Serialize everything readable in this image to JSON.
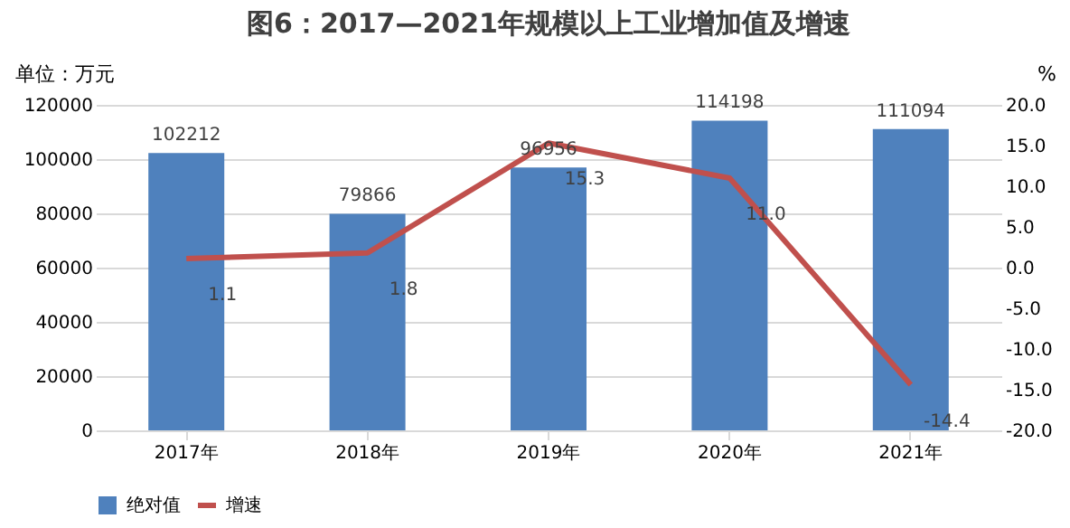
{
  "chart_data": {
    "type": "bar",
    "title": "图6：2017—2021年规模以上工业增加值及增速",
    "ylabel": "单位：万元",
    "y2label": "%",
    "categories": [
      "2017年",
      "2018年",
      "2019年",
      "2020年",
      "2021年"
    ],
    "series": [
      {
        "name": "绝对值",
        "color": "#4f81bd",
        "values": [
          102212,
          79866,
          96956,
          114198,
          111094
        ]
      },
      {
        "name": "增速",
        "type": "line",
        "axis": "y2",
        "color": "#c0504d",
        "values": [
          1.1,
          1.8,
          15.3,
          11.0,
          -14.4
        ],
        "value_labels": [
          "1.1",
          "1.8",
          "15.3",
          "11.0",
          "-14.4"
        ]
      }
    ],
    "ylim": [
      0,
      120000
    ],
    "yticks": [
      0,
      20000,
      40000,
      60000,
      80000,
      100000,
      120000
    ],
    "y2lim": [
      -20,
      20
    ],
    "y2ticks": [
      {
        "value": -20,
        "label": "-20.0"
      },
      {
        "value": -15,
        "label": "-15.0"
      },
      {
        "value": -10,
        "label": "-10.0"
      },
      {
        "value": -5,
        "label": "-5.0"
      },
      {
        "value": 0,
        "label": "0.0"
      },
      {
        "value": 5,
        "label": "5.0"
      },
      {
        "value": 10,
        "label": "10.0"
      },
      {
        "value": 15,
        "label": "15.0"
      },
      {
        "value": 20,
        "label": "20.0"
      }
    ],
    "grid": "y",
    "legend": "bottom",
    "data_labels": true,
    "marker": "none",
    "line_style": "solid"
  }
}
